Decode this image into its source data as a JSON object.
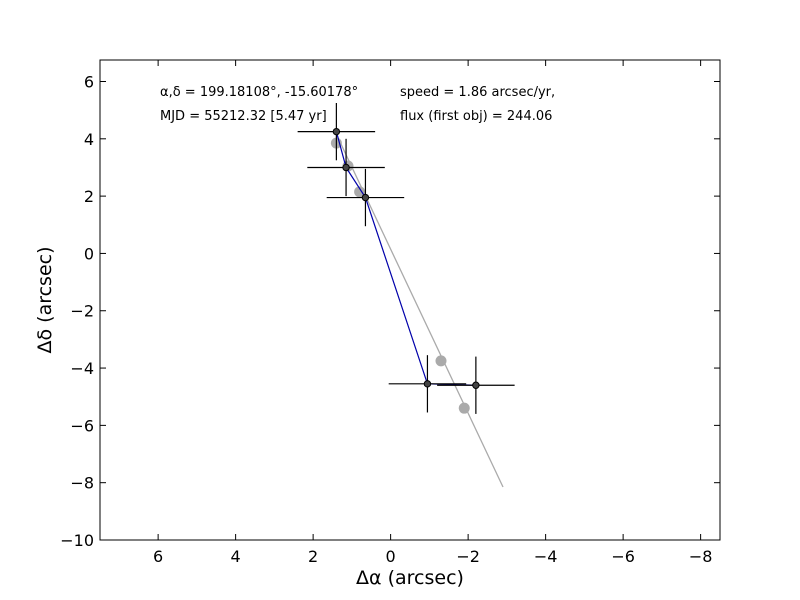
{
  "chart_data": {
    "type": "scatter",
    "title": "",
    "xlabel": "Δα (arcsec)",
    "ylabel": "Δδ (arcsec)",
    "xlim": [
      7.5,
      -8.5
    ],
    "ylim": [
      -10,
      6.75
    ],
    "x_ticks": [
      6,
      4,
      2,
      0,
      -2,
      -4,
      -6,
      -8
    ],
    "x_tick_labels": [
      "6",
      "4",
      "2",
      "0",
      "−2",
      "−4",
      "−6",
      "−8"
    ],
    "y_ticks": [
      6,
      4,
      2,
      0,
      -2,
      -4,
      -6,
      -8,
      -10
    ],
    "y_tick_labels": [
      "6",
      "4",
      "2",
      "0",
      "−2",
      "−4",
      "−6",
      "−8",
      "−10"
    ],
    "grid": false,
    "annotations": [
      "α,δ = 199.18108°, -15.60178°",
      "MJD = 55212.32 [5.47 yr]",
      "speed = 1.86 arcsec/yr,",
      "flux (first obj) = 244.06"
    ],
    "series": [
      {
        "kind": "model_line",
        "color": "#aaaaaa",
        "x": [
          1.45,
          -2.9
        ],
        "y": [
          4.3,
          -8.15
        ]
      },
      {
        "kind": "model_points",
        "color": "#aaaaaa",
        "x": [
          1.4,
          1.1,
          0.8,
          -1.3,
          -1.9
        ],
        "y": [
          3.85,
          3.05,
          2.15,
          -3.75,
          -5.4
        ]
      },
      {
        "kind": "observed_track",
        "color": "#0000aa",
        "x": [
          1.4,
          1.15,
          0.65,
          -0.95,
          -2.2
        ],
        "y": [
          4.25,
          3.0,
          1.95,
          -4.55,
          -4.6
        ]
      },
      {
        "kind": "observed_points",
        "color": "#000000",
        "marker_fill": "#444444",
        "x": [
          1.4,
          1.15,
          0.65,
          -0.95,
          -2.2
        ],
        "y": [
          4.25,
          3.0,
          1.95,
          -4.55,
          -4.6
        ],
        "x_err": [
          1.0,
          1.0,
          1.0,
          1.0,
          1.0
        ],
        "y_err": [
          1.0,
          1.0,
          1.0,
          1.0,
          1.0
        ]
      }
    ]
  }
}
